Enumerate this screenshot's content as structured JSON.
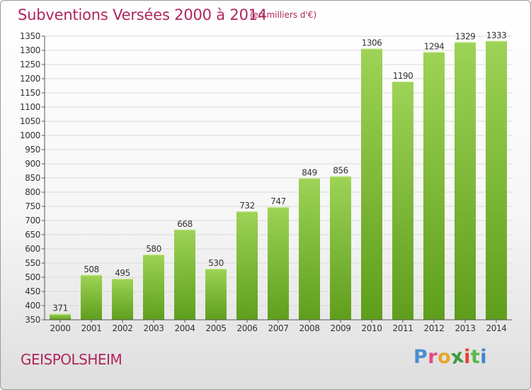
{
  "header": {
    "title": "Subventions Versées 2000 à 2014",
    "subtitle": "(en milliers d'€)"
  },
  "footer": {
    "city": "GEISPOLSHEIM",
    "logo": "Proxiti",
    "logo_letters": [
      "P",
      "r",
      "o",
      "x",
      "i",
      "t",
      "i"
    ],
    "logo_colors": [
      "#4a8fd0",
      "#e34b7f",
      "#e8a52a",
      "#3b9a3f",
      "#e8402f",
      "#5bb847",
      "#3d86cc"
    ]
  },
  "colors": {
    "bar_light": "#9dd356",
    "bar_dark": "#5f9e1c",
    "text_accent": "#b0255e",
    "axis_text": "#333333"
  },
  "chart_data": {
    "type": "bar",
    "title": "Subventions Versées 2000 à 2014",
    "subtitle": "(en milliers d'€)",
    "xlabel": "",
    "ylabel": "",
    "categories": [
      "2000",
      "2001",
      "2002",
      "2003",
      "2004",
      "2005",
      "2006",
      "2007",
      "2008",
      "2009",
      "2010",
      "2011",
      "2012",
      "2013",
      "2014"
    ],
    "values": [
      371,
      508,
      495,
      580,
      668,
      530,
      732,
      747,
      849,
      856,
      1306,
      1190,
      1294,
      1329,
      1333
    ],
    "ylim": [
      350,
      1350
    ],
    "yticks": [
      350,
      400,
      450,
      500,
      550,
      600,
      650,
      700,
      750,
      800,
      850,
      900,
      950,
      1000,
      1050,
      1100,
      1150,
      1200,
      1250,
      1300,
      1350
    ],
    "grid": true,
    "legend": "none"
  }
}
